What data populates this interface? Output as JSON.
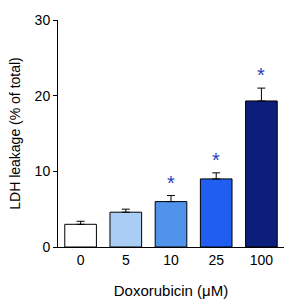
{
  "chart_data": {
    "type": "bar",
    "x_label": "Doxorubicin (μM)",
    "y_label": "LDH leakage (% of total)",
    "categories": [
      "0",
      "5",
      "10",
      "25",
      "100"
    ],
    "values": [
      3.0,
      4.6,
      6.0,
      9.0,
      19.3
    ],
    "errors": [
      0.4,
      0.4,
      0.8,
      0.8,
      1.7
    ],
    "colors": [
      "#ffffff",
      "#a9cdf5",
      "#4f93ea",
      "#1f5ef0",
      "#0b1f7a"
    ],
    "ylim": [
      0,
      30
    ],
    "yticks": [
      0,
      10,
      20,
      30
    ],
    "grid": false,
    "annotations": [
      {
        "category": "10",
        "text": "*"
      },
      {
        "category": "25",
        "text": "*"
      },
      {
        "category": "100",
        "text": "*"
      }
    ]
  }
}
